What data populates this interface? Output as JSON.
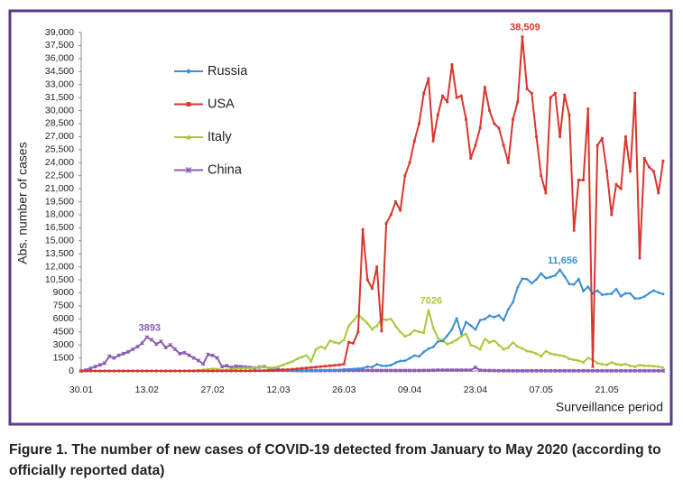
{
  "chart_data": {
    "type": "line",
    "ylabel": "Abs. number of cases",
    "xlabel": "Surveillance period",
    "legend": "upper left",
    "grid": false,
    "ylim": [
      0,
      39000
    ],
    "yticks": [
      0,
      1500,
      3000,
      4500,
      6000,
      7500,
      9000,
      {
        "value": 10500,
        "label": "10,500"
      },
      {
        "value": 12000,
        "label": "12,000"
      },
      {
        "value": 13500,
        "label": "13,500"
      },
      {
        "value": 15000,
        "label": "15,000"
      },
      {
        "value": 16500,
        "label": "16,500"
      },
      {
        "value": 18000,
        "label": "18,000"
      },
      {
        "value": 19500,
        "label": "19,500"
      },
      {
        "value": 21000,
        "label": "21,000"
      },
      {
        "value": 22500,
        "label": "22,500"
      },
      {
        "value": 24000,
        "label": "24,000"
      },
      {
        "value": 25500,
        "label": "25,500"
      },
      {
        "value": 27000,
        "label": "27,000"
      },
      {
        "value": 28500,
        "label": "28,500"
      },
      {
        "value": 30000,
        "label": "30,000"
      },
      {
        "value": 31500,
        "label": "31,500"
      },
      {
        "value": 33000,
        "label": "33,000"
      },
      {
        "value": 34500,
        "label": "34,500"
      },
      {
        "value": 36000,
        "label": "36,000"
      },
      {
        "value": 37500,
        "label": "37,500"
      },
      {
        "value": 39000,
        "label": "39,000"
      }
    ],
    "categories": [
      "30.01",
      null,
      null,
      null,
      null,
      null,
      null,
      null,
      null,
      null,
      null,
      null,
      null,
      null,
      "13.02",
      null,
      null,
      null,
      null,
      null,
      null,
      null,
      null,
      null,
      null,
      null,
      null,
      null,
      "27.02",
      null,
      null,
      null,
      null,
      null,
      null,
      null,
      null,
      null,
      null,
      null,
      null,
      null,
      "12.03",
      null,
      null,
      null,
      null,
      null,
      null,
      null,
      null,
      null,
      null,
      null,
      null,
      null,
      "26.03",
      null,
      null,
      null,
      null,
      null,
      null,
      null,
      null,
      null,
      null,
      null,
      null,
      null,
      "09.04",
      null,
      null,
      null,
      null,
      null,
      null,
      null,
      null,
      null,
      null,
      null,
      null,
      null,
      "23.04",
      null,
      null,
      null,
      null,
      null,
      null,
      null,
      null,
      null,
      null,
      null,
      null,
      null,
      "07.05",
      null,
      null,
      null,
      null,
      null,
      null,
      null,
      null,
      null,
      null,
      null,
      null,
      null,
      "21.05",
      null,
      null,
      null,
      null,
      null,
      null,
      null,
      null,
      null,
      null,
      null,
      null
    ],
    "series": [
      {
        "name": "Russia",
        "color": "#3b8fd6",
        "marker": "diamond",
        "values": [
          0,
          0,
          0,
          0,
          0,
          0,
          0,
          0,
          0,
          0,
          0,
          0,
          0,
          0,
          0,
          0,
          0,
          0,
          0,
          0,
          0,
          0,
          0,
          0,
          0,
          0,
          0,
          0,
          0,
          0,
          0,
          0,
          0,
          0,
          0,
          0,
          0,
          0,
          0,
          0,
          0,
          0,
          0,
          10,
          10,
          20,
          20,
          20,
          30,
          30,
          40,
          50,
          60,
          70,
          80,
          100,
          182,
          196,
          228,
          270,
          302,
          500,
          440,
          771,
          601,
          582,
          658,
          954,
          1154,
          1175,
          1459,
          1786,
          1667,
          2186,
          2558,
          2774,
          3388,
          3448,
          4070,
          4785,
          6060,
          4268,
          5642,
          5236,
          4774,
          5849,
          5966,
          6361,
          6198,
          6411,
          5841,
          7099,
          7933,
          9623,
          10633,
          10581,
          10102,
          10559,
          11231,
          10699,
          10817,
          11012,
          11656,
          10899,
          10028,
          9974,
          10598,
          9200,
          9709,
          8926,
          9263,
          8764,
          8849,
          8894,
          9434,
          8599,
          8946,
          8915,
          8338,
          8371,
          8572,
          8952,
          9268,
          9035,
          8863
        ],
        "value_labels": [
          null,
          null,
          null,
          null,
          null,
          null,
          null,
          null,
          null,
          null,
          null,
          null,
          null,
          null,
          null,
          null,
          null,
          null,
          null,
          null,
          null,
          null,
          null,
          null,
          null,
          null,
          null,
          null,
          null,
          null,
          null,
          null,
          null,
          null,
          null,
          null,
          null,
          null,
          null,
          null,
          null,
          null,
          null,
          null,
          null,
          null,
          null,
          null,
          null,
          null,
          null,
          null,
          null,
          null,
          null,
          null,
          null,
          null,
          null,
          null,
          null,
          null,
          null,
          null,
          null,
          null,
          null,
          null,
          null,
          null,
          null,
          null,
          null,
          null,
          null,
          null,
          null,
          null,
          null,
          null,
          null,
          null,
          null,
          null,
          null,
          null,
          null,
          null,
          null,
          null,
          null,
          null,
          null,
          null,
          null,
          null,
          null,
          null,
          null,
          null,
          null,
          null,
          "11,656",
          null,
          null,
          null,
          null,
          null,
          null,
          null,
          null,
          null,
          null,
          null,
          null,
          null,
          null,
          null,
          null,
          null,
          null,
          null,
          null,
          null,
          null
        ]
      },
      {
        "name": "USA",
        "color": "#d9362f",
        "marker": "square",
        "values": [
          0,
          0,
          0,
          0,
          0,
          0,
          0,
          0,
          0,
          0,
          0,
          0,
          0,
          0,
          0,
          0,
          0,
          0,
          0,
          0,
          0,
          0,
          0,
          0,
          0,
          0,
          0,
          0,
          0,
          0,
          0,
          0,
          0,
          0,
          0,
          10,
          10,
          20,
          30,
          50,
          60,
          70,
          100,
          120,
          150,
          200,
          250,
          300,
          350,
          400,
          450,
          500,
          550,
          600,
          650,
          700,
          800,
          3300,
          3200,
          4500,
          16300,
          10500,
          9500,
          12000,
          4600,
          17000,
          18000,
          19500,
          18500,
          22500,
          24000,
          26500,
          28500,
          32000,
          33700,
          26500,
          29500,
          31700,
          31000,
          35300,
          31500,
          31700,
          29000,
          24500,
          26000,
          28000,
          32700,
          30000,
          28500,
          28000,
          26000,
          24000,
          29000,
          31000,
          38509,
          32500,
          32000,
          27000,
          22500,
          20500,
          31500,
          32000,
          27000,
          31800,
          29500,
          16200,
          22000,
          22000,
          30200,
          500,
          26000,
          26800,
          23000,
          18000,
          21500,
          21000,
          27000,
          23000,
          32000,
          13000,
          24500,
          23500,
          23000,
          20500,
          24200
        ],
        "value_labels": [
          null,
          null,
          null,
          null,
          null,
          null,
          null,
          null,
          null,
          null,
          null,
          null,
          null,
          null,
          null,
          null,
          null,
          null,
          null,
          null,
          null,
          null,
          null,
          null,
          null,
          null,
          null,
          null,
          null,
          null,
          null,
          null,
          null,
          null,
          null,
          null,
          null,
          null,
          null,
          null,
          null,
          null,
          null,
          null,
          null,
          null,
          null,
          null,
          null,
          null,
          null,
          null,
          null,
          null,
          null,
          null,
          null,
          null,
          null,
          null,
          null,
          null,
          null,
          null,
          null,
          null,
          null,
          null,
          null,
          null,
          null,
          null,
          null,
          null,
          null,
          null,
          null,
          null,
          null,
          null,
          null,
          null,
          null,
          null,
          null,
          null,
          null,
          null,
          null,
          null,
          null,
          null,
          null,
          null,
          "38,509",
          null,
          null,
          null,
          null,
          null,
          null,
          null,
          null,
          null,
          null,
          null,
          null,
          null,
          null,
          null,
          null,
          null,
          null,
          null,
          null,
          null,
          null,
          null,
          null,
          null,
          null,
          null,
          null,
          null,
          null
        ]
      },
      {
        "name": "Italy",
        "color": "#a9c83b",
        "marker": "triangle",
        "values": [
          0,
          0,
          0,
          0,
          0,
          0,
          0,
          0,
          0,
          0,
          0,
          0,
          0,
          0,
          0,
          0,
          0,
          0,
          0,
          0,
          0,
          0,
          0,
          20,
          50,
          100,
          150,
          200,
          250,
          230,
          100,
          150,
          200,
          250,
          300,
          350,
          300,
          400,
          450,
          500,
          300,
          400,
          500,
          700,
          900,
          1100,
          1400,
          1600,
          1800,
          1100,
          2500,
          2800,
          2600,
          3500,
          3300,
          3200,
          3600,
          5200,
          5800,
          6500,
          6000,
          5500,
          4800,
          5200,
          6000,
          5900,
          6000,
          5200,
          4500,
          4000,
          4200,
          4700,
          4500,
          4400,
          7026,
          5000,
          3800,
          3500,
          3100,
          3300,
          3600,
          4000,
          4300,
          3000,
          2800,
          2500,
          3700,
          3300,
          3500,
          3000,
          2500,
          2700,
          3300,
          2800,
          2600,
          2300,
          2200,
          2000,
          1700,
          2300,
          2000,
          1900,
          1800,
          1700,
          1400,
          1300,
          1200,
          1000,
          1500,
          1300,
          900,
          800,
          700,
          1000,
          800,
          700,
          800,
          600,
          500,
          700,
          600,
          600,
          550,
          500,
          400
        ],
        "value_labels": [
          null,
          null,
          null,
          null,
          null,
          null,
          null,
          null,
          null,
          null,
          null,
          null,
          null,
          null,
          null,
          null,
          null,
          null,
          null,
          null,
          null,
          null,
          null,
          null,
          null,
          null,
          null,
          null,
          null,
          null,
          null,
          null,
          null,
          null,
          null,
          null,
          null,
          null,
          null,
          null,
          null,
          null,
          null,
          null,
          null,
          null,
          null,
          null,
          null,
          null,
          null,
          null,
          null,
          null,
          null,
          null,
          null,
          null,
          null,
          null,
          null,
          null,
          null,
          null,
          null,
          null,
          null,
          null,
          null,
          null,
          null,
          null,
          null,
          null,
          "7026",
          null,
          null,
          null,
          null,
          null,
          null,
          null,
          null,
          null,
          null,
          null,
          null,
          null,
          null,
          null,
          null,
          null,
          null,
          null,
          null,
          null,
          null,
          null,
          null,
          null,
          null,
          null,
          null,
          null,
          null,
          null,
          null,
          null,
          null,
          null,
          null,
          null,
          null,
          null,
          null,
          null,
          null,
          null,
          null,
          null,
          null,
          null,
          null,
          null,
          null
        ]
      },
      {
        "name": "China",
        "color": "#8b5db3",
        "marker": "cross",
        "values": [
          0,
          100,
          300,
          500,
          700,
          900,
          1700,
          1500,
          1800,
          2000,
          2200,
          2500,
          2800,
          3200,
          3893,
          3600,
          3100,
          3400,
          2700,
          3000,
          2500,
          2000,
          2100,
          1800,
          1500,
          1200,
          800,
          1900,
          1800,
          1500,
          500,
          600,
          400,
          550,
          500,
          450,
          400,
          350,
          450,
          500,
          300,
          200,
          150,
          100,
          80,
          60,
          50,
          40,
          40,
          40,
          40,
          40,
          40,
          50,
          50,
          50,
          50,
          60,
          60,
          60,
          60,
          60,
          50,
          50,
          50,
          50,
          50,
          50,
          50,
          50,
          50,
          50,
          50,
          60,
          60,
          80,
          100,
          100,
          100,
          100,
          100,
          100,
          100,
          100,
          400,
          80,
          60,
          50,
          40,
          30,
          30,
          30,
          20,
          20,
          20,
          20,
          20,
          20,
          20,
          20,
          20,
          20,
          20,
          20,
          20,
          20,
          20,
          20,
          20,
          20,
          20,
          20,
          20,
          20,
          20,
          20,
          20,
          20,
          20,
          20,
          20,
          20,
          20,
          20,
          20
        ],
        "value_labels": [
          null,
          null,
          null,
          null,
          null,
          null,
          null,
          null,
          null,
          null,
          null,
          null,
          null,
          null,
          "3893",
          null,
          null,
          null,
          null,
          null,
          null,
          null,
          null,
          null,
          null,
          null,
          null,
          null,
          null,
          null,
          null,
          null,
          null,
          null,
          null,
          null,
          null,
          null,
          null,
          null,
          null,
          null,
          null,
          null,
          null,
          null,
          null,
          null,
          null,
          null,
          null,
          null,
          null,
          null,
          null,
          null,
          null,
          null,
          null,
          null,
          null,
          null,
          null,
          null,
          null,
          null,
          null,
          null,
          null,
          null,
          null,
          null,
          null,
          null,
          null,
          null,
          null,
          null,
          null,
          null,
          null,
          null,
          null,
          null,
          null,
          null,
          null,
          null,
          null,
          null,
          null,
          null,
          null,
          null,
          null,
          null,
          null,
          null,
          null,
          null,
          null,
          null,
          null,
          null,
          null,
          null,
          null,
          null,
          null,
          null,
          null,
          null,
          null,
          null,
          null,
          null,
          null,
          null,
          null,
          null,
          null,
          null,
          null,
          null,
          null
        ]
      }
    ]
  },
  "caption": "Figure 1. The number of new cases of COVID-19 detected from January to May 2020 (according to officially reported data)"
}
